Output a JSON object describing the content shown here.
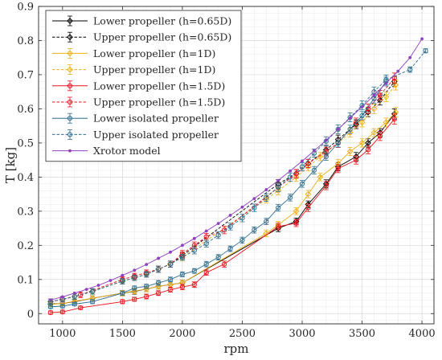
{
  "chart_data": {
    "type": "line",
    "title": "",
    "xlabel": "rpm",
    "ylabel": "T [kg]",
    "xlim": [
      800,
      4100
    ],
    "ylim": [
      -0.03,
      0.9
    ],
    "xticks": [
      1000,
      1500,
      2000,
      2500,
      3000,
      3500,
      4000
    ],
    "yticks": [
      0,
      0.1,
      0.2,
      0.3,
      0.4,
      0.5,
      0.6,
      0.7,
      0.8,
      0.9
    ],
    "xtick_labels": [
      "1000",
      "1500",
      "2000",
      "2500",
      "3000",
      "3500",
      "4000"
    ],
    "ytick_labels": [
      "0",
      "0.1",
      "0.2",
      "0.3",
      "0.4",
      "0.5",
      "0.6",
      "0.7",
      "0.8",
      "0.9"
    ],
    "grid": true,
    "minor_grid": true,
    "legend_position": "top-left",
    "series": [
      {
        "name": "Lower propeller (h=0.65D)",
        "color": "#000000",
        "dash": false,
        "marker": "diamond",
        "x": [
          900,
          1000,
          1100,
          1250,
          1500,
          1600,
          1700,
          1800,
          1900,
          2000,
          2800,
          2950,
          3050,
          3200,
          3300,
          3450,
          3550,
          3650,
          3770
        ],
        "y": [
          0.028,
          0.03,
          0.035,
          0.045,
          0.06,
          0.065,
          0.072,
          0.08,
          0.085,
          0.09,
          0.25,
          0.27,
          0.32,
          0.38,
          0.43,
          0.46,
          0.5,
          0.53,
          0.585
        ],
        "err": [
          0.007,
          0.007,
          0.007,
          0.007,
          0.008,
          0.008,
          0.008,
          0.008,
          0.008,
          0.008,
          0.01,
          0.01,
          0.01,
          0.012,
          0.012,
          0.012,
          0.012,
          0.012,
          0.015
        ]
      },
      {
        "name": "Upper propeller (h=0.65D)",
        "color": "#000000",
        "dash": true,
        "marker": "diamond",
        "x": [
          900,
          1000,
          1100,
          1250,
          1500,
          1600,
          1700,
          1800,
          1900,
          2000,
          2800,
          2950,
          3050,
          3200,
          3300,
          3450,
          3550,
          3650,
          3770
        ],
        "y": [
          0.035,
          0.042,
          0.05,
          0.065,
          0.095,
          0.105,
          0.115,
          0.13,
          0.145,
          0.17,
          0.38,
          0.41,
          0.44,
          0.48,
          0.51,
          0.555,
          0.59,
          0.625,
          0.68
        ],
        "err": [
          0.008,
          0.008,
          0.008,
          0.008,
          0.008,
          0.008,
          0.008,
          0.009,
          0.009,
          0.01,
          0.012,
          0.012,
          0.012,
          0.013,
          0.013,
          0.013,
          0.013,
          0.014,
          0.015
        ]
      },
      {
        "name": "Lower propeller (h=1D)",
        "color": "#EDB120",
        "dash": false,
        "marker": "diamond",
        "x": [
          900,
          1000,
          1100,
          1250,
          1500,
          1600,
          1700,
          1800,
          1900,
          2000,
          2700,
          2800,
          2950,
          3050,
          3150,
          3300,
          3400,
          3500,
          3600,
          3700,
          3780
        ],
        "y": [
          0.027,
          0.03,
          0.036,
          0.045,
          0.06,
          0.066,
          0.072,
          0.08,
          0.085,
          0.09,
          0.235,
          0.26,
          0.3,
          0.35,
          0.4,
          0.44,
          0.475,
          0.5,
          0.53,
          0.56,
          0.59
        ],
        "err": [
          0.007,
          0.007,
          0.007,
          0.007,
          0.008,
          0.008,
          0.008,
          0.008,
          0.008,
          0.008,
          0.01,
          0.01,
          0.01,
          0.011,
          0.011,
          0.012,
          0.012,
          0.012,
          0.012,
          0.013,
          0.014
        ]
      },
      {
        "name": "Upper propeller (h=1D)",
        "color": "#EDB120",
        "dash": true,
        "marker": "diamond",
        "x": [
          900,
          1000,
          1100,
          1250,
          1500,
          1600,
          1700,
          1800,
          1900,
          2000,
          2700,
          2800,
          2950,
          3050,
          3150,
          3300,
          3400,
          3500,
          3600,
          3700,
          3780
        ],
        "y": [
          0.035,
          0.042,
          0.05,
          0.065,
          0.095,
          0.105,
          0.115,
          0.13,
          0.145,
          0.165,
          0.335,
          0.36,
          0.4,
          0.43,
          0.46,
          0.5,
          0.53,
          0.56,
          0.6,
          0.635,
          0.67
        ],
        "err": [
          0.008,
          0.008,
          0.008,
          0.008,
          0.008,
          0.008,
          0.008,
          0.009,
          0.009,
          0.01,
          0.011,
          0.012,
          0.012,
          0.012,
          0.012,
          0.013,
          0.013,
          0.013,
          0.014,
          0.014,
          0.015
        ]
      },
      {
        "name": "Lower propeller (h=1.5D)",
        "color": "#E8141C",
        "dash": false,
        "marker": "circle",
        "x": [
          900,
          1000,
          1150,
          1500,
          1600,
          1700,
          1800,
          1900,
          2000,
          2100,
          2200,
          2350,
          2800,
          2950,
          3050,
          3200,
          3300,
          3450,
          3550,
          3650,
          3770
        ],
        "y": [
          0.003,
          0.005,
          0.017,
          0.035,
          0.042,
          0.05,
          0.06,
          0.07,
          0.078,
          0.085,
          0.12,
          0.145,
          0.255,
          0.265,
          0.31,
          0.375,
          0.425,
          0.45,
          0.48,
          0.52,
          0.57
        ],
        "err": [
          0.005,
          0.005,
          0.005,
          0.006,
          0.006,
          0.007,
          0.007,
          0.007,
          0.008,
          0.008,
          0.008,
          0.009,
          0.01,
          0.01,
          0.011,
          0.012,
          0.012,
          0.012,
          0.012,
          0.013,
          0.015
        ]
      },
      {
        "name": "Upper propeller (h=1.5D)",
        "color": "#E8141C",
        "dash": true,
        "marker": "circle",
        "x": [
          900,
          1000,
          1150,
          1500,
          1600,
          1700,
          1800,
          1900,
          2000,
          2100,
          2200,
          2350,
          2800,
          2950,
          3050,
          3200,
          3300,
          3450,
          3550,
          3650,
          3770
        ],
        "y": [
          0.035,
          0.042,
          0.055,
          0.1,
          0.11,
          0.12,
          0.13,
          0.145,
          0.175,
          0.2,
          0.225,
          0.245,
          0.37,
          0.41,
          0.44,
          0.475,
          0.5,
          0.56,
          0.6,
          0.64,
          0.69
        ],
        "err": [
          0.008,
          0.008,
          0.008,
          0.008,
          0.008,
          0.008,
          0.009,
          0.009,
          0.01,
          0.01,
          0.01,
          0.011,
          0.012,
          0.012,
          0.012,
          0.013,
          0.013,
          0.013,
          0.014,
          0.014,
          0.015
        ]
      },
      {
        "name": "Lower isolated propeller",
        "color": "#2E6E8E",
        "dash": false,
        "marker": "circle",
        "x": [
          900,
          1000,
          1100,
          1250,
          1500,
          1600,
          1700,
          1800,
          1900,
          2000,
          2100,
          2200,
          2300,
          2400,
          2500,
          2600,
          2700,
          2800,
          2900,
          3000,
          3100,
          3200,
          3300,
          3400,
          3500,
          3600,
          3700
        ],
        "y": [
          0.02,
          0.022,
          0.028,
          0.035,
          0.06,
          0.075,
          0.08,
          0.09,
          0.1,
          0.115,
          0.125,
          0.145,
          0.165,
          0.19,
          0.215,
          0.245,
          0.27,
          0.31,
          0.34,
          0.38,
          0.42,
          0.46,
          0.5,
          0.54,
          0.58,
          0.63,
          0.68
        ],
        "err": [
          0.005,
          0.005,
          0.005,
          0.006,
          0.006,
          0.006,
          0.006,
          0.007,
          0.007,
          0.007,
          0.007,
          0.008,
          0.008,
          0.008,
          0.009,
          0.009,
          0.009,
          0.01,
          0.01,
          0.01,
          0.011,
          0.011,
          0.012,
          0.012,
          0.012,
          0.013,
          0.013
        ]
      },
      {
        "name": "Upper isolated propeller",
        "color": "#2E6E8E",
        "dash": true,
        "marker": "circle",
        "x": [
          900,
          1000,
          1100,
          1250,
          1500,
          1600,
          1700,
          1800,
          1900,
          2000,
          2100,
          2200,
          2300,
          2400,
          2500,
          2600,
          2700,
          2800,
          2900,
          3000,
          3100,
          3200,
          3300,
          3400,
          3500,
          3600,
          3700,
          3900,
          4030
        ],
        "y": [
          0.035,
          0.042,
          0.05,
          0.065,
          0.095,
          0.105,
          0.115,
          0.13,
          0.145,
          0.165,
          0.185,
          0.205,
          0.23,
          0.255,
          0.28,
          0.31,
          0.34,
          0.37,
          0.4,
          0.43,
          0.47,
          0.505,
          0.54,
          0.575,
          0.61,
          0.65,
          0.685,
          0.715,
          0.77
        ],
        "err": [
          0.008,
          0.008,
          0.008,
          0.008,
          0.008,
          0.008,
          0.008,
          0.009,
          0.009,
          0.009,
          0.01,
          0.01,
          0.01,
          0.01,
          0.011,
          0.011,
          0.011,
          0.012,
          0.012,
          0.012,
          0.012,
          0.013,
          0.013,
          0.013,
          0.013,
          0.014,
          0.014,
          0.008,
          0.006
        ]
      },
      {
        "name": "Xrotor model",
        "color": "#8E3FBF",
        "dash": false,
        "marker": "dot",
        "x": [
          900,
          1000,
          1100,
          1200,
          1300,
          1400,
          1500,
          1600,
          1700,
          1800,
          1900,
          2000,
          2100,
          2200,
          2300,
          2400,
          2500,
          2600,
          2700,
          2800,
          2900,
          3000,
          3100,
          3200,
          3300,
          3400,
          3500,
          3600,
          3700,
          3800,
          3900,
          4000
        ],
        "y": [
          0.04,
          0.049,
          0.06,
          0.071,
          0.083,
          0.097,
          0.112,
          0.127,
          0.144,
          0.162,
          0.18,
          0.2,
          0.22,
          0.242,
          0.264,
          0.288,
          0.312,
          0.337,
          0.363,
          0.39,
          0.418,
          0.447,
          0.477,
          0.508,
          0.54,
          0.573,
          0.606,
          0.64,
          0.675,
          0.71,
          0.75,
          0.805
        ]
      }
    ]
  }
}
